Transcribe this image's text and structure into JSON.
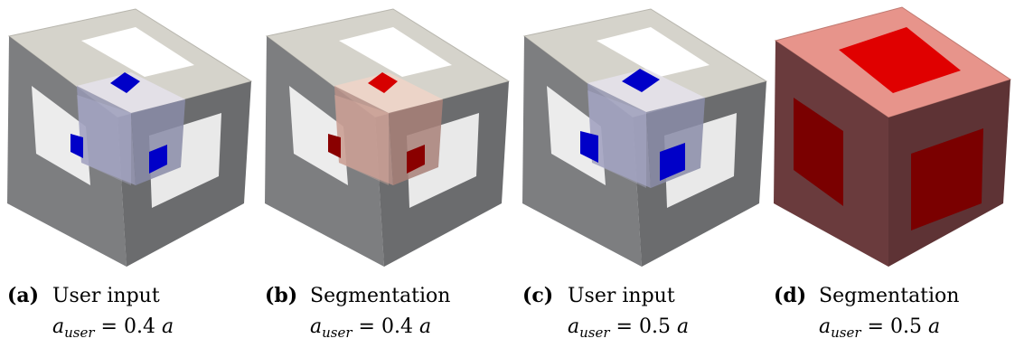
{
  "figure": {
    "colors": {
      "frame_top": "#d5d3cb",
      "frame_left": "#7d7e80",
      "frame_right": "#6b6c6e",
      "user_seed": "#0000c8",
      "segmentation": "#d60000",
      "solid_cube_top": "#e7948b",
      "solid_cube_side": "#6a3b3d"
    },
    "panels": [
      {
        "letter": "(a)",
        "title": "User input",
        "formula": {
          "symbol": "a",
          "subscript": "user",
          "equals": "=",
          "value": "0.4",
          "unit": "a"
        },
        "render": "user-input-frame",
        "seed_color": "#0000c8"
      },
      {
        "letter": "(b)",
        "title": "Segmentation",
        "formula": {
          "symbol": "a",
          "subscript": "user",
          "equals": "=",
          "value": "0.4",
          "unit": "a"
        },
        "render": "segmentation-frame",
        "seed_color": "#d60000"
      },
      {
        "letter": "(c)",
        "title": "User input",
        "formula": {
          "symbol": "a",
          "subscript": "user",
          "equals": "=",
          "value": "0.5",
          "unit": "a"
        },
        "render": "user-input-frame",
        "seed_color": "#0000c8"
      },
      {
        "letter": "(d)",
        "title": "Segmentation",
        "formula": {
          "symbol": "a",
          "subscript": "user",
          "equals": "=",
          "value": "0.5",
          "unit": "a"
        },
        "render": "segmentation-solid-cube",
        "seed_color": "#d60000"
      }
    ]
  }
}
